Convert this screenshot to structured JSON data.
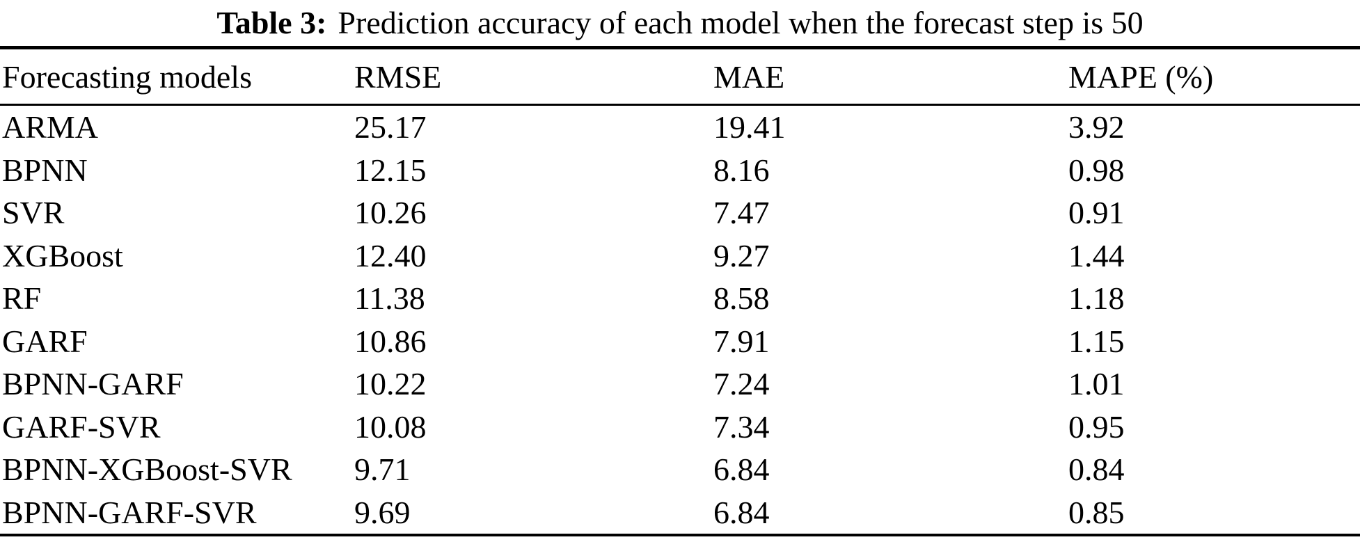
{
  "title": {
    "label": "Table 3:",
    "text": "Prediction accuracy of each model when the forecast step is 50"
  },
  "table": {
    "columns": [
      "Forecasting models",
      "RMSE",
      "MAE",
      "MAPE (%)"
    ],
    "rows": [
      {
        "model": "ARMA",
        "rmse": "25.17",
        "mae": "19.41",
        "mape": "3.92"
      },
      {
        "model": "BPNN",
        "rmse": "12.15",
        "mae": "8.16",
        "mape": "0.98"
      },
      {
        "model": "SVR",
        "rmse": "10.26",
        "mae": "7.47",
        "mape": "0.91"
      },
      {
        "model": "XGBoost",
        "rmse": "12.40",
        "mae": "9.27",
        "mape": "1.44"
      },
      {
        "model": "RF",
        "rmse": "11.38",
        "mae": "8.58",
        "mape": "1.18"
      },
      {
        "model": "GARF",
        "rmse": "10.86",
        "mae": "7.91",
        "mape": "1.15"
      },
      {
        "model": "BPNN-GARF",
        "rmse": "10.22",
        "mae": "7.24",
        "mape": "1.01"
      },
      {
        "model": "GARF-SVR",
        "rmse": "10.08",
        "mae": "7.34",
        "mape": "0.95"
      },
      {
        "model": "BPNN-XGBoost-SVR",
        "rmse": "9.71",
        "mae": "6.84",
        "mape": "0.84"
      },
      {
        "model": "BPNN-GARF-SVR",
        "rmse": "9.69",
        "mae": "6.84",
        "mape": "0.85"
      }
    ]
  },
  "chart_data": {
    "type": "table",
    "title": "Table 3: Prediction accuracy of each model when the forecast step is 50",
    "categories": [
      "ARMA",
      "BPNN",
      "SVR",
      "XGBoost",
      "RF",
      "GARF",
      "BPNN-GARF",
      "GARF-SVR",
      "BPNN-XGBoost-SVR",
      "BPNN-GARF-SVR"
    ],
    "series": [
      {
        "name": "RMSE",
        "values": [
          25.17,
          12.15,
          10.26,
          12.4,
          11.38,
          10.86,
          10.22,
          10.08,
          9.71,
          9.69
        ]
      },
      {
        "name": "MAE",
        "values": [
          19.41,
          8.16,
          7.47,
          9.27,
          8.58,
          7.91,
          7.24,
          7.34,
          6.84,
          6.84
        ]
      },
      {
        "name": "MAPE (%)",
        "values": [
          3.92,
          0.98,
          0.91,
          1.44,
          1.18,
          1.15,
          1.01,
          0.95,
          0.84,
          0.85
        ]
      }
    ]
  },
  "colors": {
    "text": "#000000",
    "background": "#ffffff",
    "rule": "#000000"
  }
}
